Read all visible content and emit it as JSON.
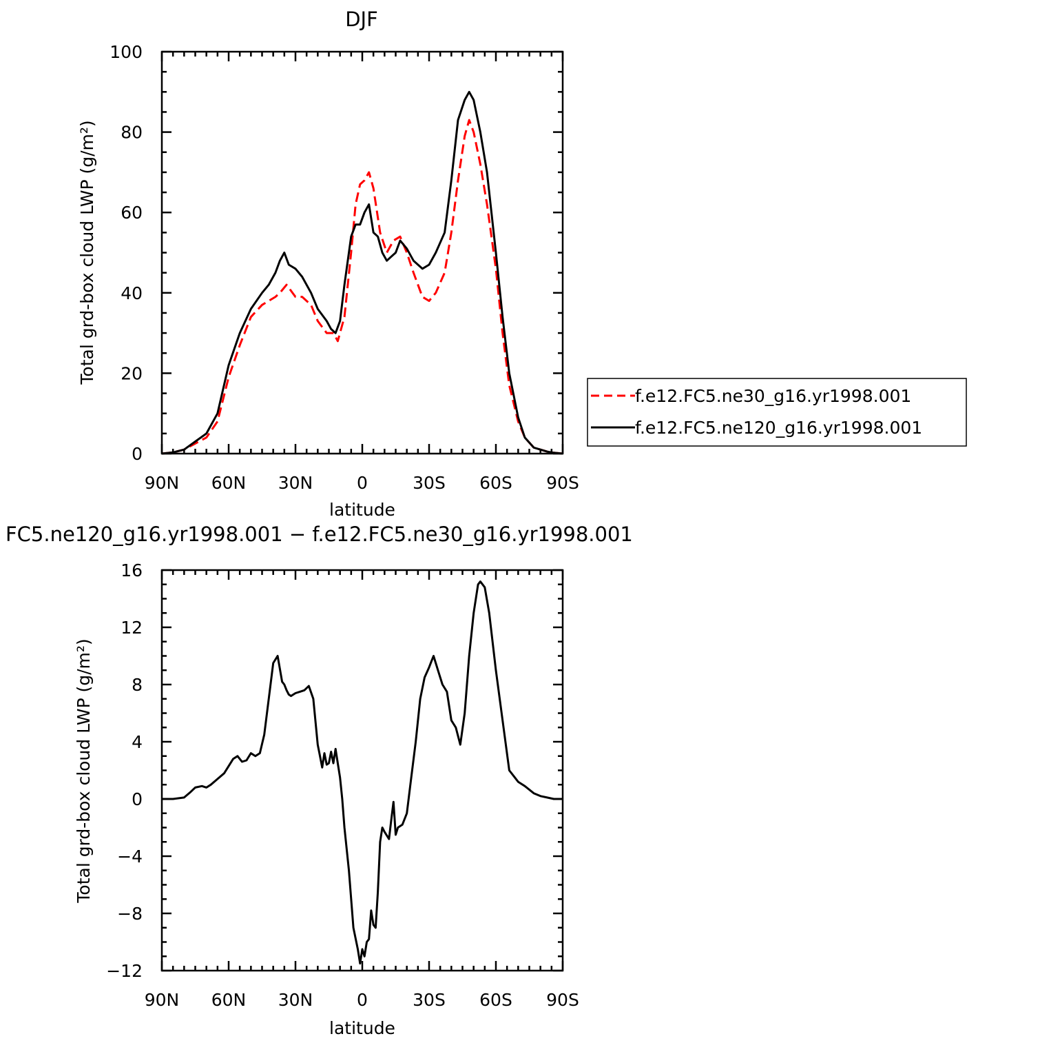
{
  "chart_data": [
    {
      "type": "line",
      "title": "DJF",
      "xlabel": "latitude",
      "ylabel": "Total grd-box cloud LWP (g/m²)",
      "xlim": [
        90,
        -90
      ],
      "ylim": [
        0,
        100
      ],
      "xticks": [
        90,
        60,
        30,
        0,
        -30,
        -60,
        -90
      ],
      "xtick_labels": [
        "90N",
        "60N",
        "30N",
        "0",
        "30S",
        "60S",
        "90S"
      ],
      "yticks": [
        0,
        20,
        40,
        60,
        80,
        100
      ],
      "ytick_labels": [
        "0",
        "20",
        "40",
        "60",
        "80",
        "100"
      ],
      "legend": "outside-right",
      "grid": false,
      "series": [
        {
          "name": "f.e12.FC5.ne30_g16.yr1998.001",
          "color": "#ff0000",
          "dash": "dashed",
          "x": [
            90,
            85,
            80,
            75,
            70,
            65,
            60,
            55,
            50,
            45,
            42,
            39,
            37,
            34,
            30,
            27,
            23,
            20,
            16,
            13,
            11,
            8,
            5,
            3,
            1,
            -1,
            -3,
            -5,
            -8,
            -11,
            -14,
            -17,
            -20,
            -23,
            -27,
            -30,
            -33,
            -37,
            -40,
            -43,
            -46,
            -48,
            -50,
            -53,
            -56,
            -60,
            -63,
            -66,
            -70,
            -73,
            -77,
            -80,
            -83,
            -86,
            -90
          ],
          "values": [
            0,
            0.3,
            1,
            2.5,
            4,
            8,
            19,
            27,
            34,
            37,
            38,
            39,
            40,
            42,
            39,
            39,
            37,
            33,
            30,
            30,
            28,
            34,
            50,
            62,
            67,
            68,
            70,
            66,
            55,
            50,
            53,
            54,
            50,
            45,
            39,
            38,
            40,
            45,
            55,
            68,
            79,
            83,
            80,
            72,
            62,
            46,
            30,
            17,
            8,
            4,
            1.5,
            1,
            0.5,
            0.2,
            0
          ]
        },
        {
          "name": "f.e12.FC5.ne120_g16.yr1998.001",
          "color": "#000000",
          "dash": "solid",
          "x": [
            90,
            85,
            80,
            75,
            70,
            65,
            60,
            55,
            50,
            45,
            42,
            39,
            37,
            35,
            33,
            30,
            27,
            23,
            20,
            16,
            14,
            12,
            10,
            8,
            5,
            3,
            1,
            -1,
            -3,
            -5,
            -7,
            -9,
            -11,
            -13,
            -15,
            -17,
            -20,
            -23,
            -27,
            -30,
            -33,
            -37,
            -40,
            -43,
            -46,
            -48,
            -50,
            -53,
            -56,
            -60,
            -63,
            -66,
            -70,
            -73,
            -77,
            -80,
            -83,
            -86,
            -90
          ],
          "values": [
            0,
            0.3,
            1,
            3,
            5,
            10,
            22,
            30,
            36,
            40,
            42,
            45,
            48,
            50,
            47,
            46,
            44,
            40,
            36,
            33,
            31,
            30,
            33,
            42,
            54,
            57,
            57,
            60,
            62,
            55,
            54,
            50,
            48,
            49,
            50,
            53,
            51,
            48,
            46,
            47,
            50,
            55,
            68,
            83,
            88,
            90,
            88,
            80,
            70,
            50,
            34,
            20,
            9,
            4,
            1.5,
            1,
            0.5,
            0.2,
            0
          ]
        }
      ]
    },
    {
      "type": "line",
      "title": "FC5.ne120_g16.yr1998.001 − f.e12.FC5.ne30_g16.yr1998.001",
      "xlabel": "latitude",
      "ylabel": "Total grd-box cloud LWP (g/m²)",
      "xlim": [
        90,
        -90
      ],
      "ylim": [
        -12,
        16
      ],
      "xticks": [
        90,
        60,
        30,
        0,
        -30,
        -60,
        -90
      ],
      "xtick_labels": [
        "90N",
        "60N",
        "30N",
        "0",
        "30S",
        "60S",
        "90S"
      ],
      "yticks": [
        -12,
        -8,
        -4,
        0,
        4,
        8,
        12,
        16
      ],
      "ytick_labels": [
        "−12",
        "−8",
        "−4",
        "0",
        "4",
        "8",
        "12",
        "16"
      ],
      "grid": false,
      "series": [
        {
          "color": "#000000",
          "dash": "solid",
          "x": [
            90,
            85,
            80,
            77,
            75,
            72,
            70,
            68,
            65,
            62,
            60,
            58,
            56,
            54,
            52,
            50,
            48,
            46,
            44,
            42,
            40,
            38,
            36,
            35,
            34,
            33,
            32,
            30,
            28,
            26,
            24,
            22,
            20,
            19,
            18,
            17,
            16,
            15,
            14,
            13,
            12,
            11,
            10,
            9,
            8,
            6,
            4,
            2,
            1,
            0,
            -1,
            -2,
            -3,
            -4,
            -5,
            -6,
            -7,
            -8,
            -9,
            -10,
            -12,
            -13,
            -14,
            -15,
            -16,
            -18,
            -20,
            -22,
            -24,
            -26,
            -28,
            -30,
            -31,
            -32,
            -33,
            -34,
            -36,
            -38,
            -40,
            -42,
            -44,
            -46,
            -48,
            -50,
            -52,
            -53,
            -55,
            -57,
            -60,
            -63,
            -66,
            -68,
            -70,
            -73,
            -77,
            -80,
            -83,
            -86,
            -90
          ],
          "values": [
            0,
            0,
            0.1,
            0.5,
            0.8,
            0.9,
            0.8,
            1,
            1.4,
            1.8,
            2.3,
            2.8,
            3,
            2.6,
            2.7,
            3.2,
            3.0,
            3.2,
            4.5,
            7,
            9.5,
            10,
            8.2,
            8,
            7.6,
            7.3,
            7.2,
            7.4,
            7.5,
            7.6,
            7.9,
            7,
            3.8,
            3,
            2.2,
            3.2,
            2.4,
            2.5,
            3.3,
            2.5,
            3.5,
            2.5,
            1.5,
            0,
            -2,
            -5,
            -9,
            -10.5,
            -11.5,
            -10.5,
            -11,
            -10,
            -9.8,
            -7.8,
            -8.8,
            -9,
            -6.5,
            -3,
            -2,
            -2.3,
            -2.8,
            -1.5,
            -0.2,
            -2.5,
            -2,
            -1.8,
            -1,
            1.5,
            4,
            7,
            8.5,
            9.2,
            9.6,
            10,
            9.5,
            9,
            8,
            7.5,
            5.5,
            5,
            3.8,
            6,
            10,
            13,
            15,
            15.2,
            14.8,
            13,
            9,
            5.5,
            2,
            1.6,
            1.2,
            0.9,
            0.4,
            0.2,
            0.1,
            0,
            0
          ]
        }
      ]
    }
  ]
}
